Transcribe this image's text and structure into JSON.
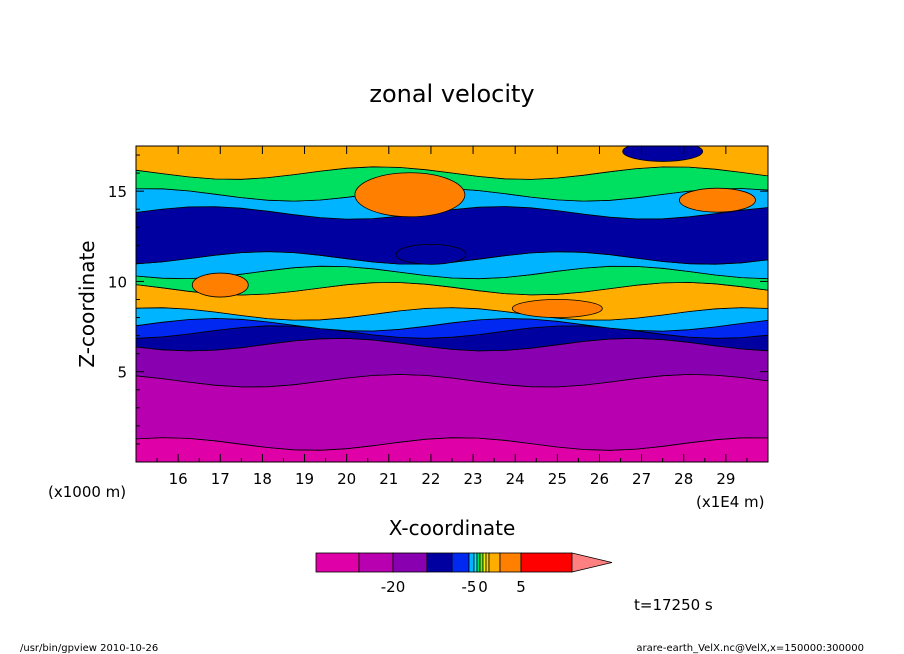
{
  "chart_data": {
    "type": "heatmap",
    "title": "zonal velocity",
    "xlabel": "X-coordinate",
    "ylabel": "Z-coordinate",
    "x_unit_left": "(x1000 m)",
    "x_unit_right": "(x1E4 m)",
    "x_ticks": [
      16,
      17,
      18,
      19,
      20,
      21,
      22,
      23,
      24,
      25,
      26,
      27,
      28,
      29
    ],
    "y_ticks": [
      5,
      10,
      15
    ],
    "xlim": [
      15.0,
      30.0
    ],
    "ylim": [
      0.0,
      17.5
    ],
    "colorbar_labels": [
      {
        "value": -20,
        "text": "-20"
      },
      {
        "value": -5,
        "text": "-5"
      },
      {
        "value": 0,
        "text": "0"
      },
      {
        "value": 5,
        "text": "5"
      }
    ],
    "time_label": "t=17250 s",
    "footer_left": "/usr/bin/gpview   2010-10-26",
    "footer_right": "arare-earth_VelX.nc@VelX,x=150000:300000",
    "levels": [
      -30,
      -25,
      -20,
      -15,
      -10,
      -5,
      -3,
      -2,
      -1,
      0,
      1,
      2,
      3,
      5,
      10,
      15,
      20
    ],
    "level_colors": [
      "#e000a8",
      "#b800b0",
      "#8800b0",
      "#0000a0",
      "#0028f0",
      "#00b4ff",
      "#00f0ff",
      "#00e060",
      "#60ee20",
      "#f0f000",
      "#ffd000",
      "#ffae00",
      "#ff8000",
      "#ff0000",
      "#ff8080"
    ],
    "bands_note": "field approximated as horizontal bands (z ranges in km-units of axis) with embedded anomalies",
    "bands": [
      {
        "z": [
          0.0,
          1.0
        ],
        "value": -27
      },
      {
        "z": [
          1.0,
          4.5
        ],
        "value": -22
      },
      {
        "z": [
          4.5,
          6.5
        ],
        "value": -17
      },
      {
        "z": [
          6.5,
          7.2
        ],
        "value": -12
      },
      {
        "z": [
          7.2,
          7.6
        ],
        "value": -7
      },
      {
        "z": [
          7.6,
          8.2
        ],
        "value": -4
      },
      {
        "z": [
          8.2,
          9.6
        ],
        "value": 2
      },
      {
        "z": [
          9.6,
          10.5
        ],
        "value": -2
      },
      {
        "z": [
          10.5,
          11.3
        ],
        "value": -4
      },
      {
        "z": [
          11.3,
          13.8
        ],
        "value": -12
      },
      {
        "z": [
          13.8,
          14.8
        ],
        "value": -4
      },
      {
        "z": [
          14.8,
          16.0
        ],
        "value": -2
      },
      {
        "z": [
          16.0,
          17.5
        ],
        "value": 2
      }
    ],
    "anomalies": [
      {
        "x": 21.5,
        "z": 14.8,
        "value": 4,
        "note": "orange blob upper middle"
      },
      {
        "x": 22.0,
        "z": 11.5,
        "value": -15,
        "note": "dark blue blob"
      },
      {
        "x": 17.0,
        "z": 9.8,
        "value": 4,
        "note": "orange blob left"
      },
      {
        "x": 25.0,
        "z": 8.5,
        "value": 4,
        "note": "orange blob right"
      },
      {
        "x": 28.8,
        "z": 14.5,
        "value": 4,
        "note": "orange blob right-top"
      },
      {
        "x": 27.5,
        "z": 17.2,
        "value": -12,
        "note": "blue blob top right"
      }
    ]
  },
  "icons": {
    "colorbar_arrow": "triangle-right"
  }
}
